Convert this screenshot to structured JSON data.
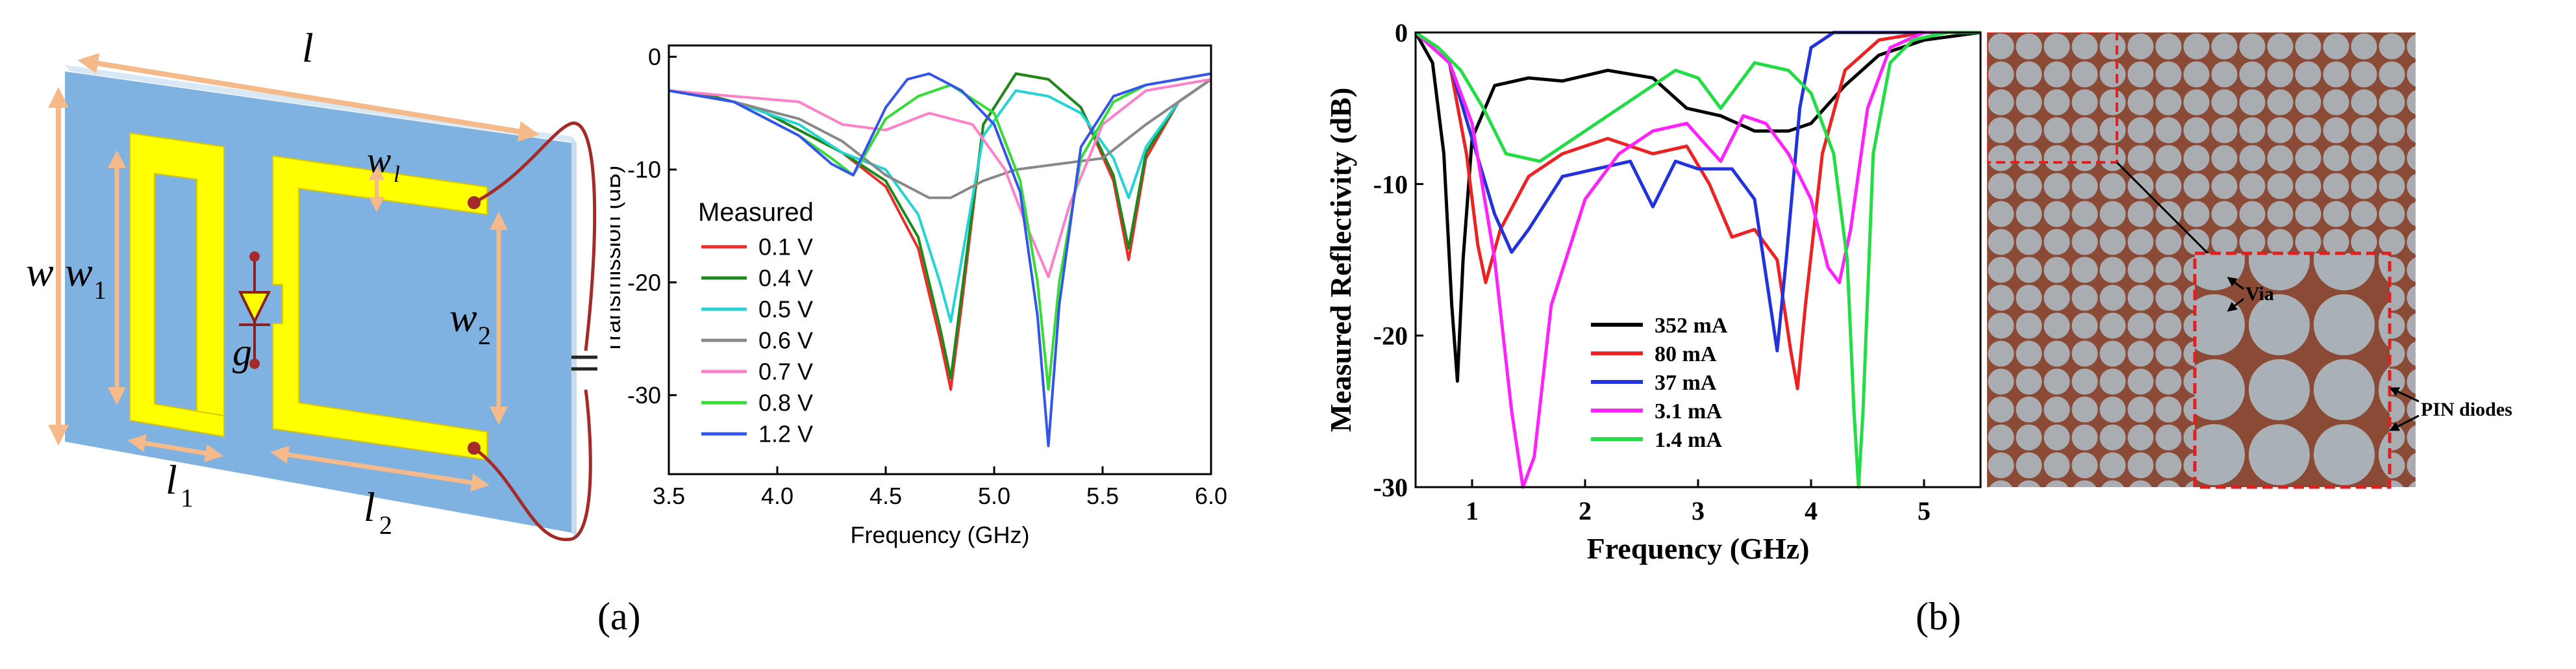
{
  "captions": {
    "a": "(a)",
    "b": "(b)"
  },
  "schematic": {
    "labels": {
      "l": "l",
      "w": "w",
      "w1": "w",
      "w1_sub": "1",
      "wl": "w",
      "wl_sub": "l",
      "w2": "w",
      "w2_sub": "2",
      "g": "g",
      "l1": "l",
      "l1_sub": "1",
      "l2": "l",
      "l2_sub": "2"
    },
    "colors": {
      "substrate": "#7fb2e0",
      "metal": "#ffff00",
      "dimension": "#f5b98a",
      "wire": "#a52a2a"
    }
  },
  "chart_data": [
    {
      "id": "a",
      "type": "line",
      "xlabel": "Frequency (GHz)",
      "ylabel": "Transmission (dB)",
      "xlim": [
        3.5,
        6.0
      ],
      "ylim": [
        -37,
        1
      ],
      "xticks": [
        "3.5",
        "4.0",
        "4.5",
        "5.0",
        "5.5",
        "6.0"
      ],
      "yticks": [
        "0",
        "-10",
        "-20",
        "-30"
      ],
      "legend_title": "Measured",
      "legend_position": "center-left",
      "series": [
        {
          "name": "0.1  V",
          "color": "#ee2b2b",
          "x": [
            3.5,
            3.7,
            3.9,
            4.1,
            4.3,
            4.5,
            4.65,
            4.75,
            4.8,
            4.85,
            4.95,
            5.1,
            5.25,
            5.4,
            5.55,
            5.62,
            5.7,
            5.85,
            6.0
          ],
          "y": [
            -3,
            -3.5,
            -4.5,
            -6.5,
            -8.5,
            -11.5,
            -17,
            -25,
            -29.5,
            -22,
            -6,
            -1.5,
            -2,
            -4.5,
            -11,
            -18,
            -9,
            -4,
            -2
          ]
        },
        {
          "name": "0.4  V",
          "color": "#1a8a1a",
          "x": [
            3.5,
            3.7,
            3.9,
            4.1,
            4.3,
            4.5,
            4.65,
            4.75,
            4.8,
            4.85,
            4.95,
            5.1,
            5.25,
            5.4,
            5.55,
            5.62,
            5.7,
            5.85,
            6.0
          ],
          "y": [
            -3,
            -3.5,
            -4.5,
            -6.5,
            -8.5,
            -11,
            -16,
            -24,
            -28.5,
            -21,
            -6,
            -1.5,
            -2,
            -4.5,
            -10.5,
            -17,
            -8.5,
            -4,
            -2
          ]
        },
        {
          "name": "0.5  V",
          "color": "#22d4d4",
          "x": [
            3.5,
            3.8,
            4.1,
            4.3,
            4.5,
            4.65,
            4.75,
            4.8,
            4.85,
            4.95,
            5.1,
            5.25,
            5.4,
            5.55,
            5.62,
            5.7,
            5.85,
            6.0
          ],
          "y": [
            -3,
            -4,
            -6,
            -8.5,
            -10,
            -14,
            -20,
            -23.5,
            -18,
            -7,
            -3,
            -3.5,
            -5,
            -9,
            -12.5,
            -8,
            -4,
            -2
          ]
        },
        {
          "name": "0.6  V",
          "color": "#888888",
          "x": [
            3.5,
            3.8,
            4.1,
            4.3,
            4.5,
            4.7,
            4.8,
            4.95,
            5.1,
            5.3,
            5.5,
            5.7,
            5.85,
            6.0
          ],
          "y": [
            -3,
            -4,
            -5.5,
            -7.5,
            -10.5,
            -12.5,
            -12.5,
            -11,
            -10,
            -9.5,
            -9,
            -6,
            -4,
            -2
          ]
        },
        {
          "name": "0.7  V",
          "color": "#ff7fc8",
          "x": [
            3.5,
            3.8,
            4.1,
            4.3,
            4.5,
            4.7,
            4.9,
            5.05,
            5.15,
            5.25,
            5.35,
            5.5,
            5.7,
            5.85,
            6.0
          ],
          "y": [
            -3,
            -3.5,
            -4,
            -6,
            -6.5,
            -5,
            -6,
            -10,
            -15,
            -19.5,
            -13,
            -6,
            -3,
            -2.5,
            -2
          ]
        },
        {
          "name": "0.8  V",
          "color": "#33dd33",
          "x": [
            3.5,
            3.8,
            4.1,
            4.25,
            4.35,
            4.5,
            4.65,
            4.8,
            5.0,
            5.12,
            5.2,
            5.25,
            5.3,
            5.4,
            5.55,
            5.7,
            5.85,
            6.0
          ],
          "y": [
            -3,
            -4,
            -7,
            -9,
            -10.5,
            -5.5,
            -3.5,
            -2.5,
            -5,
            -11,
            -20,
            -29.5,
            -20,
            -9,
            -4,
            -2.5,
            -2,
            -1.5
          ]
        },
        {
          "name": "1.2  V",
          "color": "#3355ee",
          "x": [
            3.5,
            3.8,
            4.1,
            4.25,
            4.35,
            4.5,
            4.6,
            4.7,
            4.85,
            5.0,
            5.12,
            5.2,
            5.25,
            5.3,
            5.4,
            5.55,
            5.7,
            5.85,
            6.0
          ],
          "y": [
            -3,
            -4,
            -7,
            -9.5,
            -10.5,
            -4.5,
            -2,
            -1.5,
            -3,
            -6,
            -12,
            -23,
            -34.5,
            -22,
            -8,
            -3.5,
            -2.5,
            -2,
            -1.5
          ]
        }
      ]
    },
    {
      "id": "b",
      "type": "line",
      "xlabel": "Frequency (GHz)",
      "ylabel": "Measured Reflectivity (dB)",
      "xlim": [
        0.5,
        5.5
      ],
      "ylim": [
        -30,
        0
      ],
      "xticks": [
        "1",
        "2",
        "3",
        "4",
        "5"
      ],
      "yticks": [
        "0",
        "-10",
        "-20",
        "-30"
      ],
      "legend_position": "bottom-center",
      "series": [
        {
          "name": "352 mA",
          "color": "#000000",
          "x": [
            0.5,
            0.65,
            0.75,
            0.82,
            0.87,
            0.92,
            1.0,
            1.2,
            1.5,
            1.8,
            2.2,
            2.6,
            2.9,
            3.2,
            3.5,
            3.8,
            4.0,
            4.3,
            4.6,
            5.0,
            5.5
          ],
          "y": [
            0,
            -2,
            -8,
            -18,
            -23,
            -15,
            -7,
            -3.5,
            -3,
            -3.2,
            -2.5,
            -3,
            -5,
            -5.5,
            -6.5,
            -6.5,
            -6,
            -3.5,
            -1.5,
            -0.5,
            0
          ]
        },
        {
          "name": "80 mA",
          "color": "#ee2222",
          "x": [
            0.5,
            0.8,
            0.95,
            1.05,
            1.12,
            1.25,
            1.5,
            1.8,
            2.2,
            2.6,
            2.9,
            3.1,
            3.3,
            3.5,
            3.7,
            3.82,
            3.88,
            3.95,
            4.1,
            4.3,
            4.6,
            5.0,
            5.5
          ],
          "y": [
            0,
            -2,
            -8,
            -14,
            -16.5,
            -13,
            -9.5,
            -8,
            -7,
            -8,
            -7.5,
            -10,
            -13.5,
            -13,
            -15,
            -21,
            -23.5,
            -18,
            -8,
            -2.5,
            -0.5,
            0,
            0
          ]
        },
        {
          "name": "37 mA",
          "color": "#2233dd",
          "x": [
            0.5,
            0.8,
            1.0,
            1.2,
            1.35,
            1.5,
            1.8,
            2.1,
            2.4,
            2.6,
            2.8,
            3.0,
            3.3,
            3.5,
            3.62,
            3.7,
            3.78,
            3.9,
            4.0,
            4.2,
            4.6,
            5.0,
            5.5
          ],
          "y": [
            0,
            -2,
            -7,
            -12,
            -14.5,
            -13,
            -9.5,
            -9,
            -8.5,
            -11.5,
            -8.5,
            -9,
            -9,
            -11,
            -17,
            -21,
            -15,
            -5,
            -1,
            0,
            0,
            0,
            0
          ]
        },
        {
          "name": "3.1 mA",
          "color": "#ff22ff",
          "x": [
            0.5,
            0.8,
            1.0,
            1.2,
            1.35,
            1.45,
            1.55,
            1.7,
            2.0,
            2.3,
            2.6,
            2.9,
            3.2,
            3.4,
            3.6,
            3.8,
            4.0,
            4.15,
            4.25,
            4.35,
            4.5,
            4.7,
            5.0,
            5.5
          ],
          "y": [
            0,
            -2,
            -6,
            -15,
            -25,
            -30,
            -28,
            -18,
            -11,
            -8,
            -6.5,
            -6,
            -8.5,
            -5.5,
            -6,
            -8,
            -11,
            -15.5,
            -16.5,
            -13,
            -5,
            -1,
            0,
            0
          ]
        },
        {
          "name": "1.4 mA",
          "color": "#22dd44",
          "x": [
            0.5,
            0.7,
            0.9,
            1.1,
            1.3,
            1.6,
            1.9,
            2.2,
            2.5,
            2.8,
            3.0,
            3.2,
            3.5,
            3.8,
            4.0,
            4.2,
            4.32,
            4.38,
            4.42,
            4.46,
            4.55,
            4.7,
            4.9,
            5.2,
            5.5
          ],
          "y": [
            0,
            -1,
            -2.5,
            -5,
            -8,
            -8.5,
            -7,
            -5.5,
            -4,
            -2.5,
            -3,
            -5,
            -2,
            -2.5,
            -4,
            -8,
            -15,
            -25,
            -30,
            -25,
            -8,
            -2,
            -0.5,
            0,
            0
          ]
        }
      ]
    }
  ],
  "photo": {
    "labels": {
      "via": "Via",
      "pin": "PIN diodes"
    },
    "colors": {
      "board": "#a9adb2",
      "copper": "#8a4a35",
      "inset_border": "#e02020"
    }
  }
}
